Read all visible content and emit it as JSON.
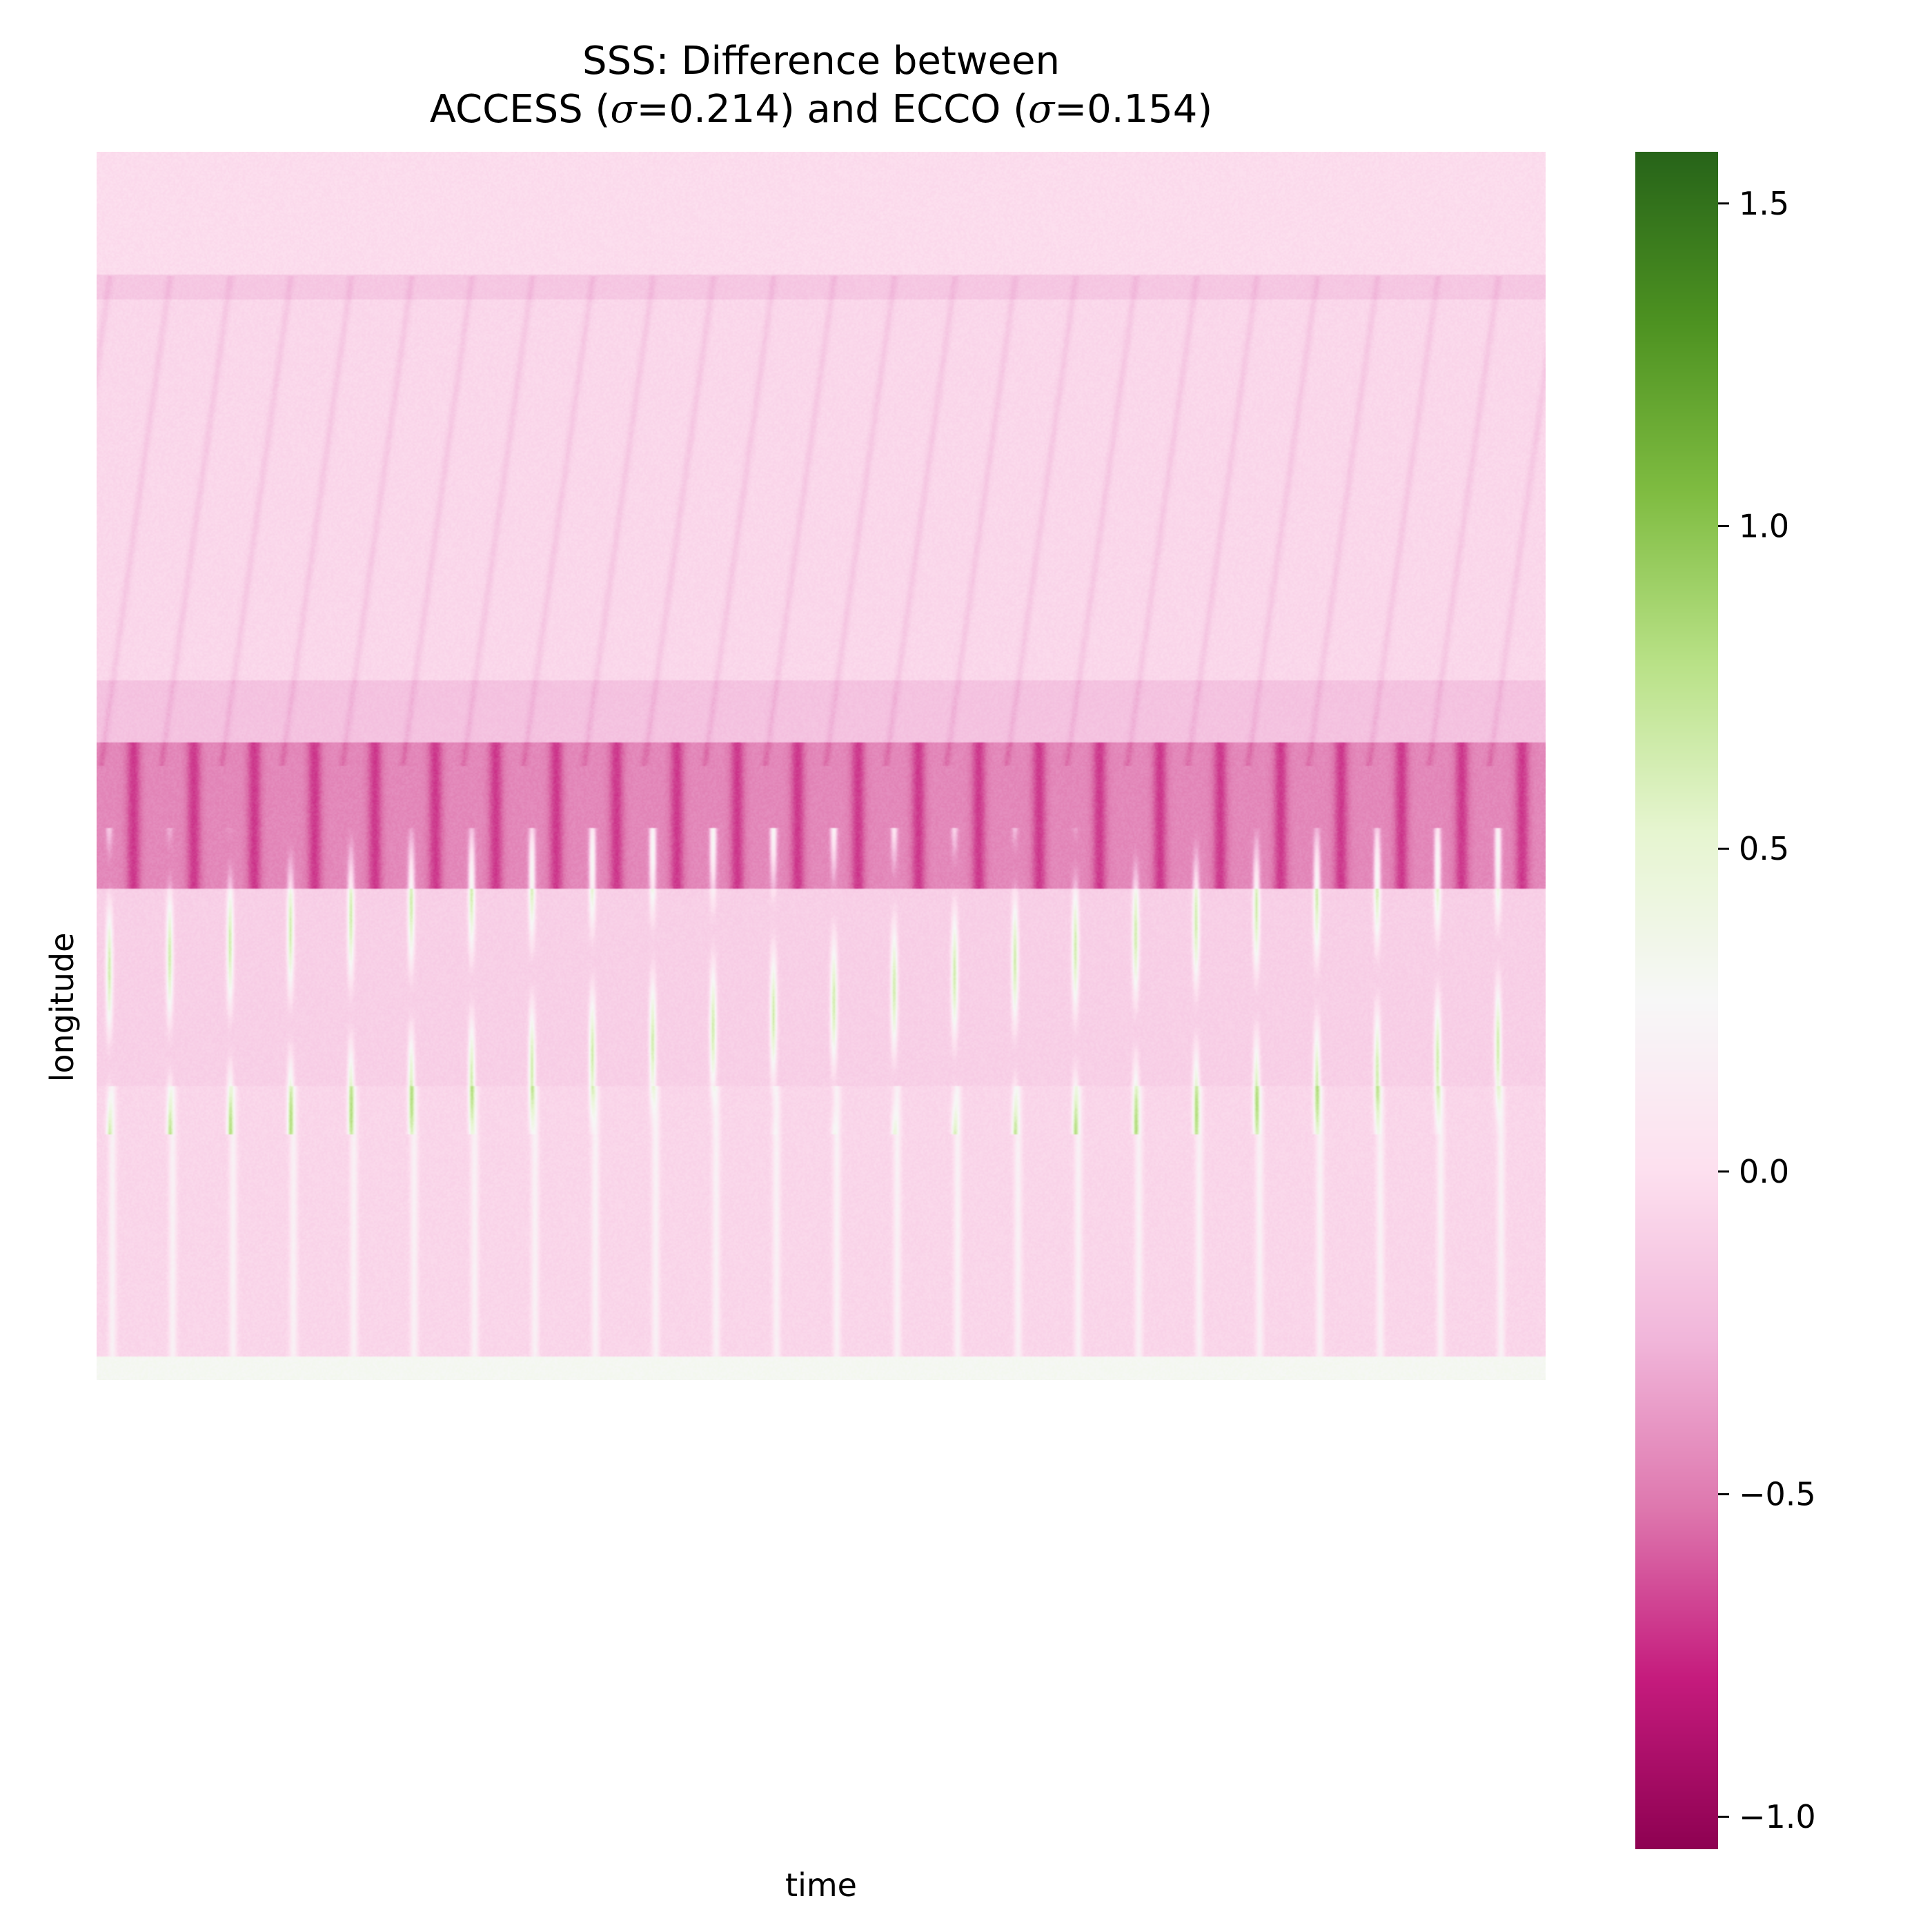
{
  "chart_data": {
    "type": "heatmap",
    "title_line_1": "SSS: Difference between",
    "title_line_2_parts": [
      "ACCESS (",
      "σ",
      "=0.214) and ECCO (",
      "σ",
      "=0.154)"
    ],
    "xlabel": "time",
    "ylabel": "longitude",
    "colormap": "PiYG",
    "colorbar": {
      "vmin": -1.05,
      "vmax": 1.58,
      "ticks": [
        -1.0,
        -0.5,
        0.0,
        0.5,
        1.0,
        1.5
      ],
      "tick_labels": [
        "−1.0",
        "−0.5",
        "0.0",
        "0.5",
        "1.0",
        "1.5"
      ]
    },
    "grid": false,
    "legend": "none",
    "bands": [
      {
        "from_row_frac": 0.0,
        "to_row_frac": 0.1,
        "value": -0.02
      },
      {
        "from_row_frac": 0.1,
        "to_row_frac": 0.12,
        "value": -0.15
      },
      {
        "from_row_frac": 0.12,
        "to_row_frac": 0.43,
        "value": -0.05
      },
      {
        "from_row_frac": 0.43,
        "to_row_frac": 0.48,
        "value": -0.18
      },
      {
        "from_row_frac": 0.48,
        "to_row_frac": 0.6,
        "value": -0.45
      },
      {
        "from_row_frac": 0.6,
        "to_row_frac": 0.76,
        "value": -0.1
      },
      {
        "from_row_frac": 0.76,
        "to_row_frac": 0.98,
        "value": -0.06
      },
      {
        "from_row_frac": 0.98,
        "to_row_frac": 1.0,
        "value": 0.3
      }
    ]
  }
}
